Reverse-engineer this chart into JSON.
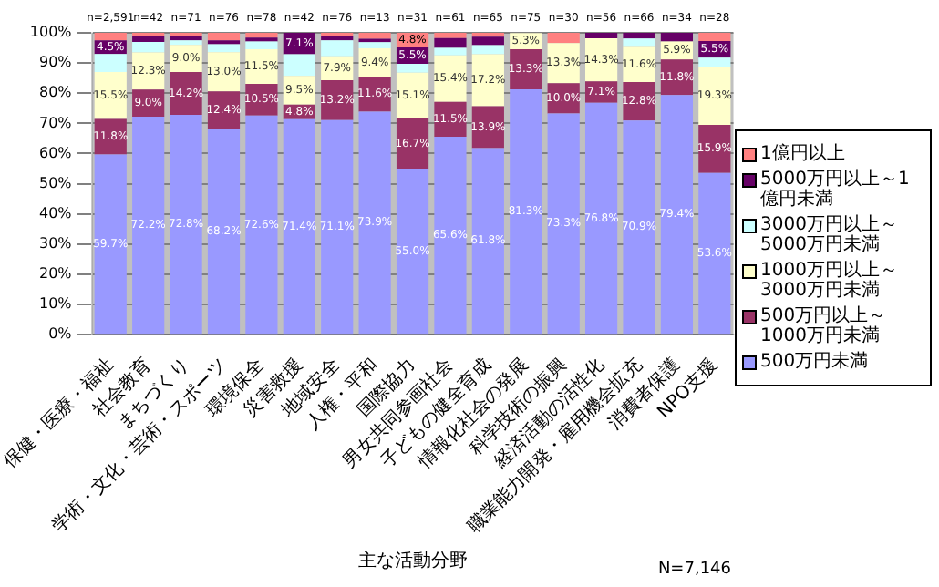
{
  "chart_data": {
    "type": "bar",
    "stacked": true,
    "xlabel": "主な活動分野",
    "categories": [
      "保健・医療・福祉",
      "社会教育",
      "まちづくり",
      "学術・文化・芸術・スポーツ",
      "環境保全",
      "災害救援",
      "地域安全",
      "人権・平和",
      "国際協力",
      "男女共同参画社会",
      "子どもの健全育成",
      "情報化社会の発展",
      "科学技術の振興",
      "経済活動の活性化",
      "職業能力開発・雇用機会拡充",
      "消費者保護",
      "NPO支援"
    ],
    "series": [
      {
        "name": "500万円未満",
        "color": "#9999ff",
        "values": [
          59.7,
          72.2,
          72.8,
          68.2,
          72.6,
          71.4,
          71.1,
          73.9,
          55.0,
          65.6,
          61.8,
          81.3,
          73.3,
          76.8,
          70.9,
          79.4,
          53.6
        ],
        "value_labels": [
          "59.7%",
          "72.2%",
          "72.8%",
          "68.2%",
          "72.6%",
          "71.4%",
          "71.1%",
          "73.9%",
          "55.0%",
          "65.6%",
          "61.8%",
          "81.3%",
          "73.3%",
          "76.8%",
          "70.9%",
          "79.4%",
          "53.6%"
        ]
      },
      {
        "name": "500万円以上～1000万円未満",
        "color": "#993366",
        "values": [
          11.8,
          9.0,
          14.2,
          12.4,
          10.5,
          4.8,
          13.2,
          11.6,
          16.7,
          11.5,
          13.9,
          13.3,
          10.0,
          7.1,
          12.8,
          11.8,
          15.9
        ],
        "value_labels": [
          "11.8%",
          "9.0%",
          "14.2%",
          "12.4%",
          "10.5%",
          "4.8%",
          "13.2%",
          "11.6%",
          "16.7%",
          "11.5%",
          "13.9%",
          "13.3%",
          "10.0%",
          "7.1%",
          "12.8%",
          "11.8%",
          "15.9%"
        ]
      },
      {
        "name": "1000万円以上～3000万円未満",
        "color": "#ffffcc",
        "values": [
          15.5,
          12.3,
          9.0,
          13.0,
          11.5,
          9.5,
          7.9,
          9.4,
          15.1,
          15.4,
          17.2,
          5.3,
          13.3,
          14.3,
          11.6,
          5.9,
          19.3
        ],
        "value_labels": [
          "15.5%",
          "12.3%",
          "9.0%",
          "13.0%",
          "11.5%",
          "9.5%",
          "7.9%",
          "9.4%",
          "15.1%",
          "15.4%",
          "17.2%",
          "5.3%",
          "13.3%",
          "14.3%",
          "11.6%",
          "5.9%",
          "19.3%"
        ]
      },
      {
        "name": "3000万円以上～5000万円未満",
        "color": "#ccffff",
        "values": [
          6.0,
          3.5,
          1.5,
          2.6,
          2.5,
          7.2,
          5.3,
          2.0,
          2.9,
          2.5,
          3.0,
          0,
          0,
          0,
          2.8,
          0,
          3.0
        ]
      },
      {
        "name": "5000万円以上～1億円未満",
        "color": "#660066",
        "values": [
          4.5,
          2.0,
          1.5,
          1.3,
          1.3,
          7.1,
          1.3,
          1.1,
          5.5,
          3.3,
          2.8,
          0,
          0,
          1.8,
          1.9,
          2.9,
          5.5
        ],
        "value_labels": [
          "4.5%",
          null,
          null,
          null,
          null,
          "7.1%",
          null,
          null,
          "5.5%",
          null,
          null,
          null,
          null,
          null,
          null,
          null,
          "5.5%"
        ]
      },
      {
        "name": "1億円以上",
        "color": "#ff8080",
        "values": [
          2.5,
          1.0,
          1.0,
          2.5,
          1.6,
          0,
          1.3,
          2.0,
          4.8,
          1.7,
          1.3,
          null,
          3.4,
          0,
          0,
          0,
          2.7
        ],
        "value_labels": [
          null,
          null,
          null,
          null,
          null,
          null,
          null,
          null,
          "4.8%",
          null,
          null,
          null,
          null,
          null,
          null,
          null,
          null
        ]
      }
    ],
    "ylim": [
      0,
      100
    ],
    "yticks": [
      {
        "value": 0,
        "label": "0%"
      },
      {
        "value": 10,
        "label": "10%"
      },
      {
        "value": 20,
        "label": "20%"
      },
      {
        "value": 30,
        "label": "30%"
      },
      {
        "value": 40,
        "label": "40%"
      },
      {
        "value": 50,
        "label": "50%"
      },
      {
        "value": 60,
        "label": "60%"
      },
      {
        "value": 70,
        "label": "70%"
      },
      {
        "value": 80,
        "label": "80%"
      },
      {
        "value": 90,
        "label": "90%"
      },
      {
        "value": 100,
        "label": "100%"
      }
    ],
    "grid": "y",
    "legend": "right",
    "annotations": [
      "n=2,591",
      "n=42",
      "n=71",
      "n=76",
      "n=78",
      "n=42",
      "n=76",
      "n=13",
      "n=31",
      "n=61",
      "n=65",
      "n=75",
      "n=30",
      "n=56",
      "n=66",
      "n=34",
      "n=28",
      "N=7,146"
    ]
  }
}
